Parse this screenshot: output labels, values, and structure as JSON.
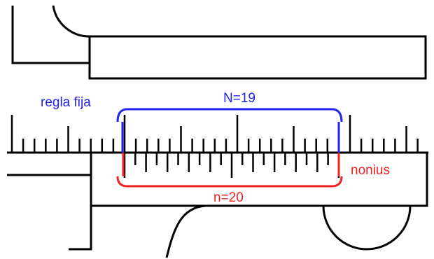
{
  "labels": {
    "fixed_scale": "regla fija",
    "vernier": "nonius",
    "upper_count": "N=19",
    "lower_count": "n=20"
  },
  "colors": {
    "line": "#000000",
    "fixed_scale": "#2222ee",
    "vernier": "#ee2222",
    "background": "#ffffff"
  }
}
